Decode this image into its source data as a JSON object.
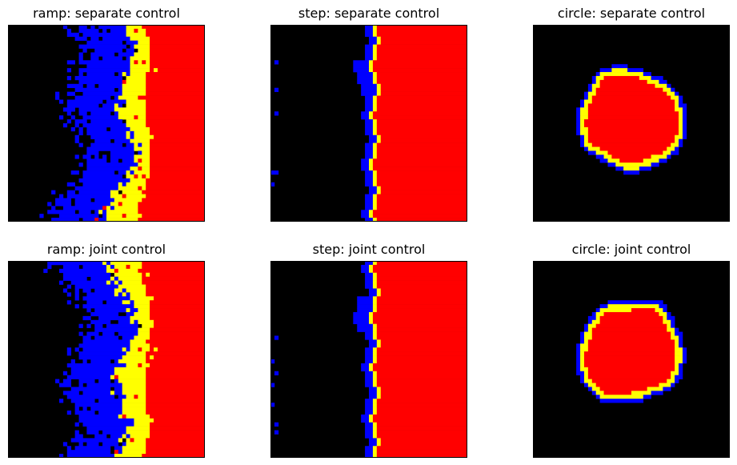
{
  "figure": {
    "colors": {
      "background": "#000000",
      "region_blue": "#0000ff",
      "region_yellow": "#ffff00",
      "region_red": "#ff0000",
      "frame": "#000000"
    }
  },
  "chart_data": [
    {
      "type": "heatmap",
      "title": "ramp: separate control",
      "pattern": "ramp",
      "variant": "separate",
      "grid": false,
      "axes_ticks": false,
      "categories": [
        "black",
        "blue",
        "yellow",
        "red"
      ]
    },
    {
      "type": "heatmap",
      "title": "step: separate control",
      "pattern": "step",
      "variant": "separate",
      "grid": false,
      "axes_ticks": false,
      "categories": [
        "black",
        "blue",
        "yellow",
        "red"
      ]
    },
    {
      "type": "heatmap",
      "title": "circle: separate control",
      "pattern": "circle",
      "variant": "separate",
      "grid": false,
      "axes_ticks": false,
      "categories": [
        "black",
        "blue",
        "yellow",
        "red"
      ]
    },
    {
      "type": "heatmap",
      "title": "ramp: joint control",
      "pattern": "ramp",
      "variant": "joint",
      "grid": false,
      "axes_ticks": false,
      "categories": [
        "black",
        "blue",
        "yellow",
        "red"
      ]
    },
    {
      "type": "heatmap",
      "title": "step: joint control",
      "pattern": "step",
      "variant": "joint",
      "grid": false,
      "axes_ticks": false,
      "categories": [
        "black",
        "blue",
        "yellow",
        "red"
      ]
    },
    {
      "type": "heatmap",
      "title": "circle: joint control",
      "pattern": "circle",
      "variant": "joint",
      "grid": false,
      "axes_ticks": false,
      "categories": [
        "black",
        "blue",
        "yellow",
        "red"
      ]
    }
  ]
}
